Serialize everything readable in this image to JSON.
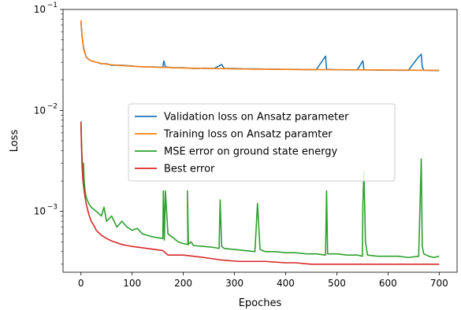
{
  "chart_data": {
    "type": "line",
    "title": "",
    "xlabel": "Epoches",
    "ylabel": "Loss",
    "xlim": [
      -35,
      735
    ],
    "ylim": [
      0.00025,
      0.1
    ],
    "yscale": "log",
    "grid": false,
    "legend_position": "center",
    "x_ticks": [
      0,
      100,
      200,
      300,
      400,
      500,
      600,
      700
    ],
    "x_tick_labels": [
      "0",
      "100",
      "200",
      "300",
      "400",
      "500",
      "600",
      "700"
    ],
    "y_ticks": [
      0.001,
      0.01,
      0.1
    ],
    "y_tick_labels": [
      "10",
      "10",
      "10"
    ],
    "y_tick_exponents": [
      "−3",
      "−2",
      "−1"
    ],
    "series": [
      {
        "name": "Validation loss on Ansatz parameter",
        "color": "#1f77b4",
        "x": [
          0,
          2,
          5,
          10,
          15,
          20,
          30,
          40,
          50,
          60,
          80,
          100,
          120,
          140,
          160,
          162,
          165,
          180,
          200,
          220,
          240,
          260,
          275,
          280,
          300,
          320,
          340,
          360,
          380,
          400,
          420,
          440,
          460,
          478,
          480,
          500,
          520,
          540,
          551,
          553,
          560,
          580,
          600,
          620,
          640,
          660,
          665,
          667,
          670,
          680,
          700
        ],
        "y": [
          0.075,
          0.055,
          0.042,
          0.034,
          0.032,
          0.031,
          0.03,
          0.029,
          0.029,
          0.028,
          0.028,
          0.0275,
          0.027,
          0.027,
          0.0268,
          0.031,
          0.027,
          0.0265,
          0.0265,
          0.026,
          0.0262,
          0.026,
          0.0285,
          0.026,
          0.026,
          0.0258,
          0.0258,
          0.0257,
          0.0256,
          0.0255,
          0.0255,
          0.0254,
          0.0254,
          0.0345,
          0.0255,
          0.0253,
          0.0252,
          0.0252,
          0.031,
          0.0252,
          0.0252,
          0.0251,
          0.0251,
          0.025,
          0.025,
          0.034,
          0.036,
          0.027,
          0.025,
          0.0249,
          0.0248
        ]
      },
      {
        "name": "Training loss on Ansatz paramter",
        "color": "#ff7f0e",
        "x": [
          0,
          2,
          5,
          10,
          15,
          20,
          30,
          40,
          50,
          60,
          80,
          100,
          120,
          140,
          160,
          180,
          200,
          220,
          240,
          260,
          280,
          300,
          320,
          340,
          360,
          380,
          400,
          420,
          440,
          460,
          480,
          500,
          520,
          540,
          560,
          580,
          600,
          620,
          640,
          660,
          680,
          700
        ],
        "y": [
          0.078,
          0.056,
          0.041,
          0.034,
          0.032,
          0.031,
          0.03,
          0.0292,
          0.0287,
          0.0283,
          0.0278,
          0.0274,
          0.0271,
          0.0269,
          0.0267,
          0.0265,
          0.0263,
          0.0262,
          0.0261,
          0.026,
          0.0259,
          0.0258,
          0.0257,
          0.0256,
          0.0256,
          0.0255,
          0.0255,
          0.0254,
          0.0254,
          0.0254,
          0.0253,
          0.0253,
          0.0253,
          0.0252,
          0.0252,
          0.0252,
          0.0251,
          0.0251,
          0.0251,
          0.025,
          0.025,
          0.025
        ]
      },
      {
        "name": "MSE error on ground state energy",
        "color": "#2ca02c",
        "x": [
          0,
          2,
          4,
          5,
          6,
          8,
          10,
          15,
          20,
          25,
          30,
          35,
          40,
          45,
          50,
          60,
          70,
          80,
          90,
          100,
          110,
          120,
          130,
          140,
          150,
          160,
          161,
          163,
          165,
          170,
          180,
          190,
          200,
          210,
          208,
          209,
          215,
          220,
          240,
          260,
          270,
          272,
          275,
          280,
          300,
          320,
          340,
          345,
          350,
          360,
          380,
          400,
          420,
          440,
          460,
          478,
          480,
          482,
          500,
          520,
          540,
          550,
          551,
          553,
          556,
          560,
          580,
          600,
          620,
          640,
          660,
          663,
          665,
          667,
          670,
          680,
          690,
          700
        ],
        "y": [
          0.0075,
          0.0035,
          0.002,
          0.003,
          0.0021,
          0.0016,
          0.0014,
          0.0012,
          0.0011,
          0.00105,
          0.001,
          0.00095,
          0.0009,
          0.0011,
          0.0008,
          0.0009,
          0.0007,
          0.0008,
          0.0007,
          0.00065,
          0.00068,
          0.0006,
          0.00058,
          0.00056,
          0.00055,
          0.00054,
          0.0016,
          0.00052,
          0.0016,
          0.0006,
          0.00055,
          0.0005,
          0.00048,
          0.00047,
          0.0016,
          0.00047,
          0.0005,
          0.00046,
          0.00045,
          0.00044,
          0.00043,
          0.0013,
          0.00045,
          0.00043,
          0.00042,
          0.00041,
          0.0004,
          0.0012,
          0.00042,
          0.0004,
          0.0004,
          0.00039,
          0.00039,
          0.00038,
          0.00038,
          0.00037,
          0.0016,
          0.00038,
          0.00038,
          0.00037,
          0.00037,
          0.00036,
          0.0012,
          0.0025,
          0.0005,
          0.00037,
          0.00036,
          0.00036,
          0.00036,
          0.00035,
          0.00036,
          0.00135,
          0.0033,
          0.00045,
          0.00038,
          0.00036,
          0.00035,
          0.00036
        ]
      },
      {
        "name": "Best error",
        "color": "#d62728",
        "x": [
          0,
          1,
          2,
          3,
          4,
          5,
          7,
          10,
          15,
          20,
          25,
          30,
          40,
          50,
          60,
          70,
          80,
          90,
          100,
          130,
          160,
          170,
          200,
          240,
          275,
          310,
          360,
          400,
          420,
          450,
          480,
          500,
          520,
          550,
          580,
          620,
          660,
          700
        ],
        "y": [
          0.0078,
          0.0045,
          0.003,
          0.0024,
          0.002,
          0.0018,
          0.0015,
          0.0012,
          0.00095,
          0.0008,
          0.00073,
          0.00065,
          0.00058,
          0.00054,
          0.00051,
          0.00049,
          0.00047,
          0.00046,
          0.00045,
          0.00043,
          0.00041,
          0.00037,
          0.00037,
          0.00035,
          0.00033,
          0.00032,
          0.00032,
          0.00031,
          0.00031,
          0.0003,
          0.0003,
          0.0003,
          0.0003,
          0.0003,
          0.0003,
          0.0003,
          0.0003,
          0.0003
        ]
      }
    ]
  }
}
